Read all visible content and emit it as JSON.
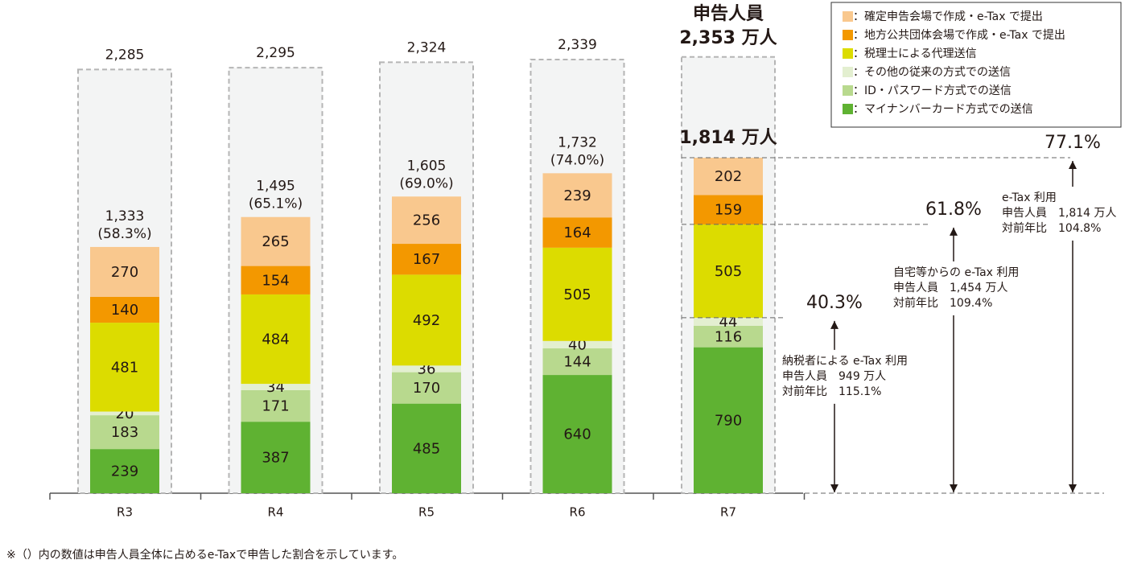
{
  "chart_data": {
    "type": "stacked-bar",
    "categories": [
      "R3",
      "R4",
      "R5",
      "R6",
      "R7"
    ],
    "series": [
      {
        "name": "：確定申告会場で作成・e-Tax で提出",
        "color": "#f9c88e",
        "values": [
          270,
          265,
          256,
          239,
          202
        ]
      },
      {
        "name": "：地方公共団体会場で作成・e-Tax で提出",
        "color": "#f39800",
        "values": [
          140,
          154,
          167,
          164,
          159
        ]
      },
      {
        "name": "：税理士による代理送信",
        "color": "#dcdc00",
        "values": [
          481,
          484,
          492,
          505,
          505
        ]
      },
      {
        "name": "：その他の従来の方式での送信",
        "color": "#e3efd0",
        "values": [
          20,
          34,
          36,
          40,
          44
        ]
      },
      {
        "name": "：ID・パスワード方式での送信",
        "color": "#b8d98e",
        "values": [
          183,
          171,
          170,
          144,
          116
        ]
      },
      {
        "name": "：マイナンバーカード方式での送信",
        "color": "#5fb232",
        "values": [
          239,
          387,
          485,
          640,
          790
        ]
      }
    ],
    "totals": {
      "caption": "申告人員",
      "values": [
        2285,
        2295,
        2324,
        2339,
        2353
      ],
      "value_labels": [
        "2,285",
        "2,295",
        "2,324",
        "2,339",
        "2,353 万人"
      ]
    },
    "etax_totals": {
      "values": [
        1333,
        1495,
        1605,
        1732,
        1814
      ],
      "value_labels": [
        "1,333",
        "1,495",
        "1,605",
        "1,732",
        "1,814 万人"
      ],
      "shares": [
        58.3,
        65.1,
        69.0,
        74.0,
        null
      ],
      "share_labels": [
        "(58.3%)",
        "(65.1%)",
        "(69.0%)",
        "(74.0%)",
        null
      ]
    },
    "annotations": [
      {
        "percent": "40.3%",
        "lines": [
          "納税者による e-Tax 利用",
          "申告人員　949 万人",
          "対前年比　115.1%"
        ]
      },
      {
        "percent": "61.8%",
        "lines": [
          "自宅等からの e-Tax 利用",
          "申告人員　1,454 万人",
          "対前年比　109.4%"
        ]
      },
      {
        "percent": "77.1%",
        "lines": [
          "e-Tax 利用",
          "申告人員　1,814 万人",
          "対前年比　104.8%"
        ]
      }
    ],
    "footnote": "※（）内の数値は申告人員全体に占めるe-Taxで申告した割合を示しています。"
  }
}
